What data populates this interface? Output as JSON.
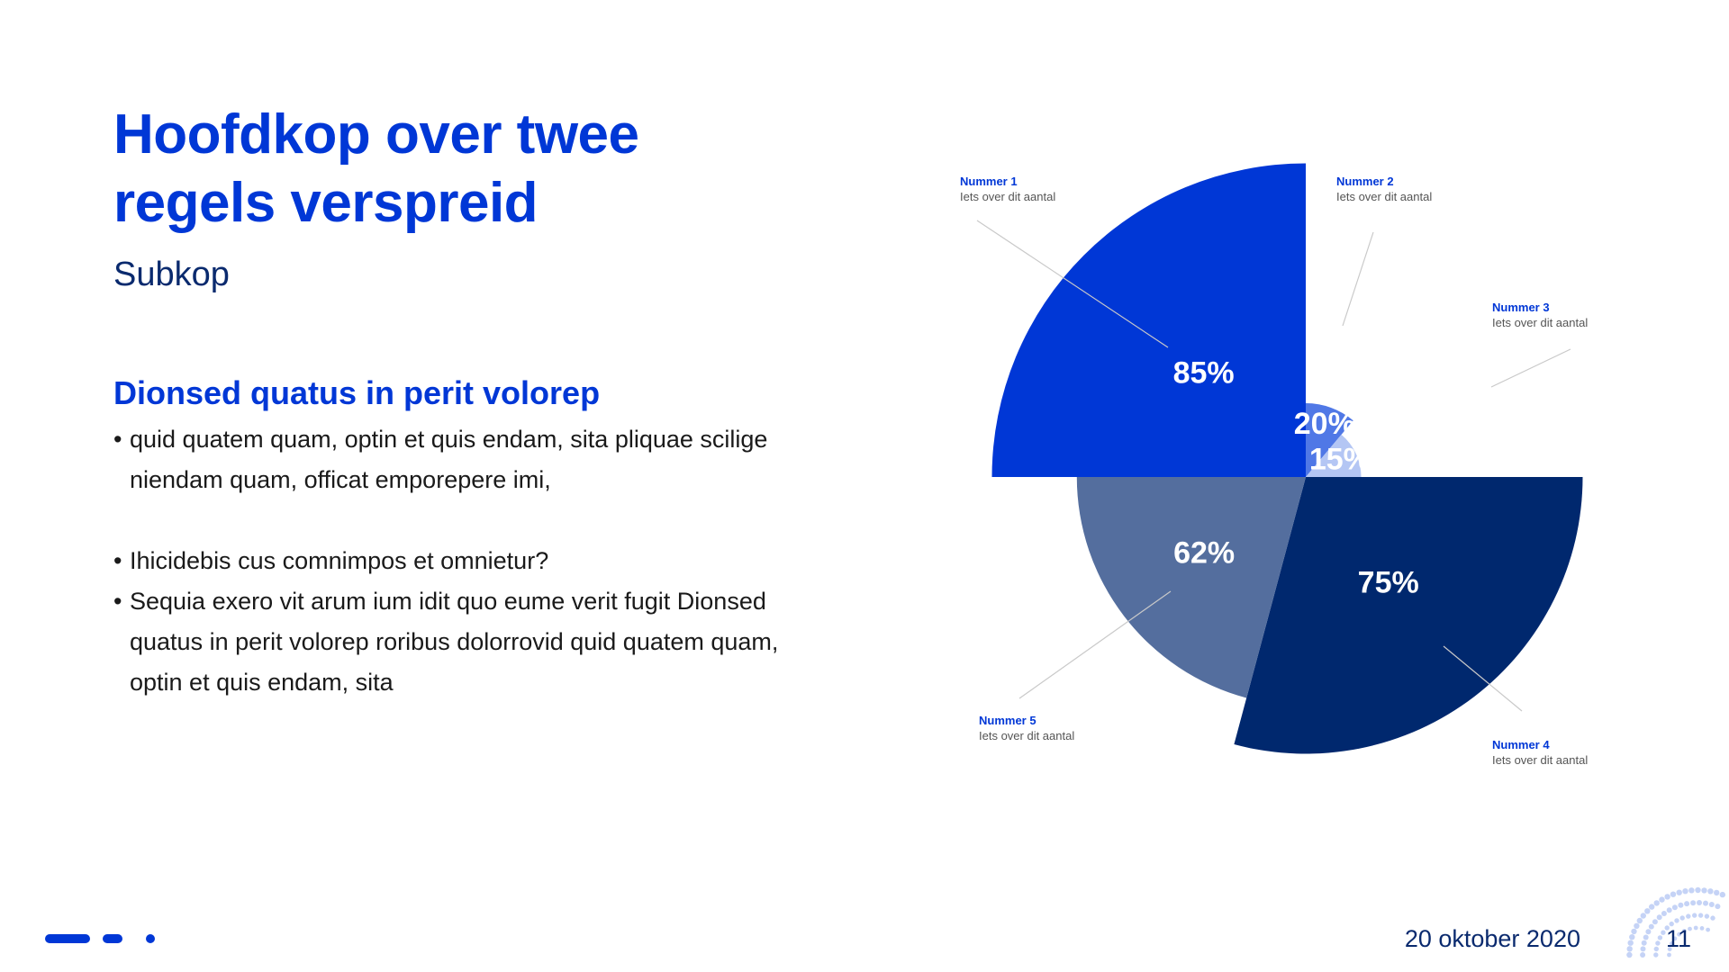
{
  "slide": {
    "title": "Hoofdkop over twee regels verspreid",
    "subtitle": "Subkop",
    "section_heading": "Dionsed quatus in perit volorep",
    "bullets": [
      "quid quatem quam, optin et quis endam, sita pliquae scilige niendam quam, officat emporepere imi,",
      "Ihicidebis cus comnimpos et omnietur?",
      "Sequia exero vit arum ium idit quo eume verit fugit Dionsed quatus in perit volorep roribus dolorrovid quid quatem quam, optin et quis endam, sita"
    ]
  },
  "chart_data": {
    "type": "pie",
    "subtype": "polar-area",
    "slices": [
      {
        "name": "Nummer 1",
        "description": "Iets over dit aantal",
        "value": 85,
        "label": "85%",
        "color": "#0037d6"
      },
      {
        "name": "Nummer 2",
        "description": "Iets over dit aantal",
        "value": 20,
        "label": "20%",
        "color": "#5078e6"
      },
      {
        "name": "Nummer 3",
        "description": "Iets over dit aantal",
        "value": 15,
        "label": "15%",
        "color": "#b4c6f4"
      },
      {
        "name": "Nummer 4",
        "description": "Iets over dit aantal",
        "value": 75,
        "label": "75%",
        "color": "#00286e"
      },
      {
        "name": "Nummer 5",
        "description": "Iets over dit aantal",
        "value": 62,
        "label": "62%",
        "color": "#546e9e"
      }
    ]
  },
  "footer": {
    "date": "20 oktober 2020",
    "page_number": "11"
  },
  "colors": {
    "accent": "#0037d6",
    "navy": "#0a2a6e",
    "body_text": "#1a1a1a"
  }
}
